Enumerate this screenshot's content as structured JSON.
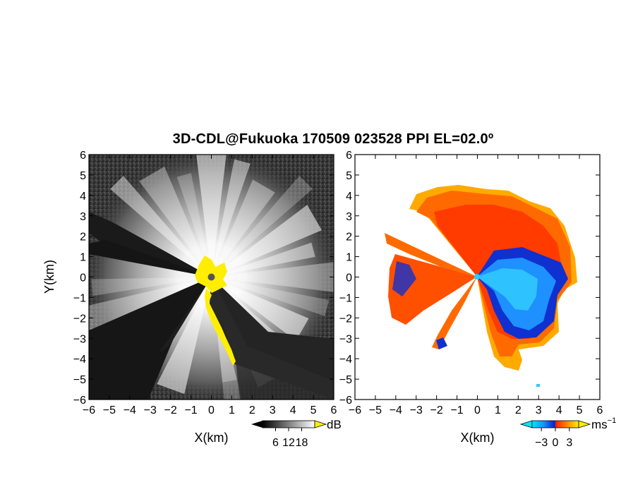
{
  "title": "3D-CDL@Fukuoka 170509 023528 PPI EL=02.0º",
  "chart_data": [
    {
      "type": "heatmap",
      "panel": "left",
      "quantity_unit": "dB",
      "xlabel": "X(km)",
      "ylabel": "Y(km)",
      "xlim": [
        -6,
        6
      ],
      "ylim": [
        -6,
        6
      ],
      "x_ticks": [
        "−6",
        "−5",
        "−4",
        "−3",
        "−2",
        "−1",
        "0",
        "1",
        "2",
        "3",
        "4",
        "5",
        "6"
      ],
      "y_ticks": [
        "6",
        "5",
        "4",
        "3",
        "2",
        "1",
        "0",
        "−1",
        "−2",
        "−3",
        "−4",
        "−5",
        "−6"
      ],
      "colorbar": {
        "unit": "dB",
        "tick_labels": [
          "6",
          "12",
          "18"
        ],
        "tick_values": [
          6,
          12,
          18
        ],
        "range": [
          0,
          24
        ],
        "colormap": "grayscale"
      },
      "highlight_color": "#ffee00",
      "radar_center_color": "#555555"
    },
    {
      "type": "heatmap",
      "panel": "right",
      "quantity_unit": "ms−1",
      "xlabel": "X(km)",
      "ylabel": "",
      "xlim": [
        -6,
        6
      ],
      "ylim": [
        -6,
        6
      ],
      "x_ticks": [
        "−6",
        "−5",
        "−4",
        "−3",
        "−2",
        "−1",
        "0",
        "1",
        "2",
        "3",
        "4",
        "5",
        "6"
      ],
      "y_ticks": [
        "6",
        "5",
        "4",
        "3",
        "2",
        "1",
        "0",
        "−1",
        "−2",
        "−3",
        "−4",
        "−5",
        "−6"
      ],
      "colorbar": {
        "unit_base": "ms",
        "unit_exp": "−1",
        "tick_labels": [
          "−3",
          "0",
          "3"
        ],
        "tick_values": [
          -3,
          0,
          3
        ],
        "range": [
          -5,
          5
        ],
        "colors": [
          "#00e5ff",
          "#1e90ff",
          "#0022cc",
          "#ff2200",
          "#ff8800",
          "#ffee00"
        ]
      }
    }
  ]
}
